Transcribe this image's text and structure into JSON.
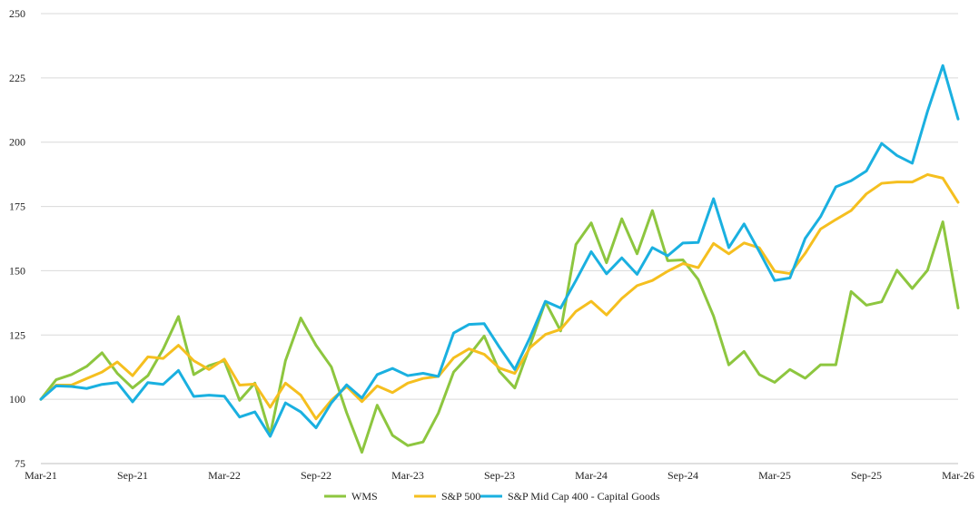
{
  "chart_data": {
    "type": "line",
    "title": "",
    "xlabel": "",
    "ylabel": "",
    "x_start": "Mar-21",
    "x_end": "Mar-26",
    "x_tick_labels": [
      "Mar-21",
      "Sep-21",
      "Mar-22",
      "Sep-22",
      "Mar-23",
      "Sep-23",
      "Mar-24",
      "Sep-24",
      "Mar-25",
      "Sep-25",
      "Mar-26"
    ],
    "y_ticks": [
      75,
      100,
      125,
      150,
      175,
      200,
      225,
      250
    ],
    "ylim": [
      75,
      250
    ],
    "grid": true,
    "legend_position": "bottom",
    "series": [
      {
        "name": "WMS",
        "color": "#8dc63f",
        "values": [
          100,
          107.6,
          109.6,
          112.8,
          118.1,
          110.1,
          104.4,
          109.2,
          119.5,
          132.2,
          109.6,
          113.1,
          115,
          99.6,
          106.3,
          86.2,
          115,
          131.6,
          121,
          112.6,
          94.8,
          79.4,
          97.7,
          86,
          82,
          83.4,
          94.6,
          110.6,
          117,
          124.6,
          110.8,
          104.4,
          121,
          137.9,
          126.6,
          160.2,
          168.6,
          153.1,
          170.2,
          156.6,
          173.4,
          153.9,
          154.2,
          146.6,
          132.4,
          113.4,
          118.6,
          109.6,
          106.6,
          111.6,
          108.2,
          113.4,
          113.4,
          141.9,
          136.6,
          137.9,
          150.2,
          143.1,
          150.2,
          169,
          135.5
        ]
      },
      {
        "name": "S&P 500",
        "color": "#f5bf1f",
        "values": [
          100,
          105.5,
          105.5,
          108.1,
          110.6,
          114.5,
          109.2,
          116.5,
          115.9,
          121,
          115,
          111.6,
          115.6,
          105.5,
          105.9,
          96.9,
          106.3,
          101.6,
          92.4,
          99.6,
          105,
          99.1,
          105.2,
          102.6,
          106.3,
          108.1,
          108.9,
          116.1,
          119.6,
          117.5,
          112.1,
          110.1,
          120.1,
          125.2,
          127.2,
          134.2,
          138.1,
          132.8,
          139.2,
          144.2,
          146.2,
          149.8,
          152.8,
          151.2,
          160.6,
          156.6,
          160.8,
          158.9,
          149.8,
          148.9,
          156.8,
          166.2,
          169.9,
          173.4,
          179.9,
          184,
          184.5,
          184.5,
          187.4,
          186,
          176.6
        ]
      },
      {
        "name": "S&P Mid Cap 400 - Capital Goods",
        "color": "#1ab0e0",
        "values": [
          100,
          105.2,
          105,
          104.2,
          105.8,
          106.5,
          99,
          106.5,
          105.8,
          111.2,
          101.1,
          101.6,
          101.2,
          93.1,
          95.1,
          85.6,
          98.6,
          95.1,
          88.9,
          98.6,
          105.6,
          100.5,
          109.6,
          112,
          109.2,
          110.1,
          108.9,
          125.8,
          129.1,
          129.4,
          120.2,
          111.6,
          124.1,
          138.1,
          135.5,
          146.2,
          157.4,
          148.8,
          155,
          148.6,
          159,
          155.8,
          160.8,
          161,
          178,
          159,
          168.2,
          157.4,
          146.2,
          147.2,
          162.6,
          171,
          182.6,
          185,
          188.8,
          199.5,
          194.8,
          191.8,
          212,
          229.8,
          209
        ]
      }
    ]
  }
}
